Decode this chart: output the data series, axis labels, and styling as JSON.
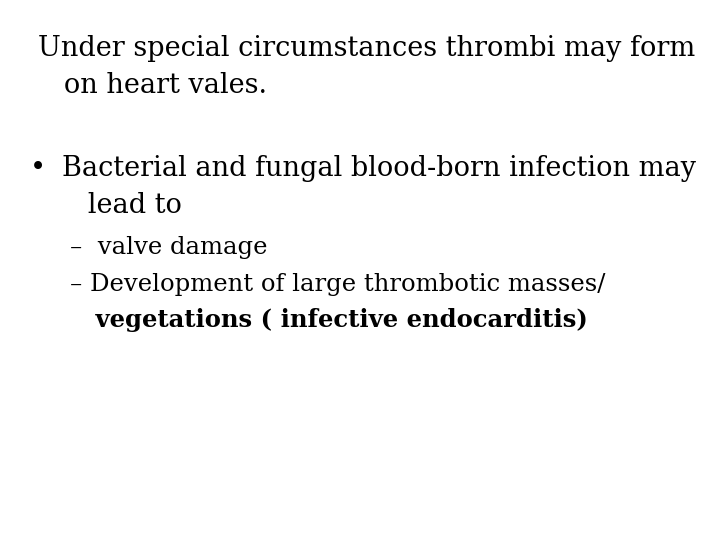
{
  "background_color": "#ffffff",
  "title_line1": "Under special circumstances thrombi may form",
  "title_line2": "   on heart vales.",
  "title_fontsize": 19.5,
  "title_font": "DejaVu Serif",
  "bullet_line1": "Bacterial and fungal blood-born infection may",
  "bullet_line2": "   lead to",
  "bullet_fontsize": 19.5,
  "sub1_text": "–  valve damage",
  "sub1_fontsize": 17.5,
  "sub2_line1": "– Development of large thrombotic masses/",
  "sub2_line2_bold": "   vegetations ( infective endocarditis)",
  "sub2_fontsize": 17.5,
  "text_color": "#000000",
  "bullet_symbol": "•"
}
